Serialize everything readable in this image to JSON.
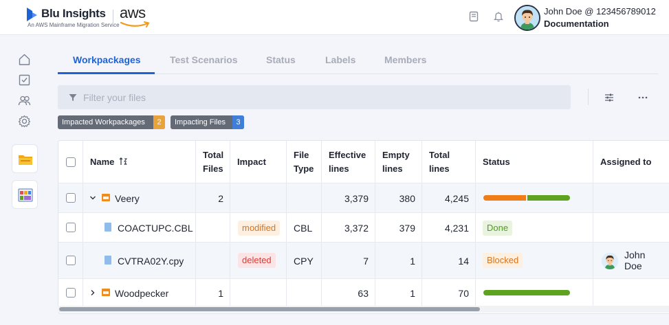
{
  "header": {
    "brand": "Blu Insights",
    "brand_sub": "An AWS Mainframe Migration Service",
    "partner_logo": "aws",
    "icons": [
      "book-icon",
      "bell-icon"
    ],
    "user_name": "John Doe @ 123456789012",
    "user_role": "Documentation"
  },
  "sidebar": {
    "icons": [
      "home-icon",
      "checklist-icon",
      "users-icon",
      "settings-icon"
    ],
    "apps": [
      "folder-app-icon",
      "dashboard-app-icon"
    ]
  },
  "tabs": [
    {
      "label": "Workpackages",
      "active": true
    },
    {
      "label": "Test Scenarios",
      "active": false
    },
    {
      "label": "Status",
      "active": false
    },
    {
      "label": "Labels",
      "active": false
    },
    {
      "label": "Members",
      "active": false
    }
  ],
  "filter": {
    "placeholder": "Filter your files"
  },
  "chips": [
    {
      "label": "Impacted Workpackages",
      "count": "2",
      "color": "#e8a33d"
    },
    {
      "label": "Impacting Files",
      "count": "3",
      "color": "#3f7fd9"
    }
  ],
  "table": {
    "columns": {
      "name": "Name",
      "total_files_1": "Total",
      "total_files_2": "Files",
      "impact": "Impact",
      "file_type_1": "File",
      "file_type_2": "Type",
      "effective_1": "Effective",
      "effective_2": "lines",
      "empty_1": "Empty",
      "empty_2": "lines",
      "total_lines_1": "Total",
      "total_lines_2": "lines",
      "status": "Status",
      "assigned": "Assigned to"
    },
    "rows": [
      {
        "name": "Veery",
        "total_files": "2",
        "impact": "",
        "file_type": "",
        "effective": "3,379",
        "empty": "380",
        "total_lines": "4,245",
        "progress": {
          "orange": 0.49,
          "green": 0.51
        }
      },
      {
        "name": "COACTUPC.CBL",
        "total_files": "",
        "impact": "modified",
        "file_type": "CBL",
        "effective": "3,372",
        "empty": "379",
        "total_lines": "4,231",
        "status": "Done"
      },
      {
        "name": "CVTRA02Y.cpy",
        "total_files": "",
        "impact": "deleted",
        "file_type": "CPY",
        "effective": "7",
        "empty": "1",
        "total_lines": "14",
        "status": "Blocked",
        "assigned_first": "John",
        "assigned_last": "Doe"
      },
      {
        "name": "Woodpecker",
        "total_files": "1",
        "impact": "",
        "file_type": "",
        "effective": "63",
        "empty": "1",
        "total_lines": "70",
        "progress": {
          "orange": 0,
          "green": 1.0
        }
      }
    ]
  },
  "colors": {
    "accent": "#1e63d6",
    "progress_orange": "#ef7d1a",
    "progress_green": "#5ea31f",
    "modified_bg": "#fdf0e0",
    "modified_fg": "#d9731d",
    "deleted_bg": "#fde4e4",
    "deleted_fg": "#d93b3b",
    "done_bg": "#e9f4df",
    "done_fg": "#4f9b1d",
    "blocked_bg": "#fdf0e0",
    "blocked_fg": "#d9731d"
  }
}
